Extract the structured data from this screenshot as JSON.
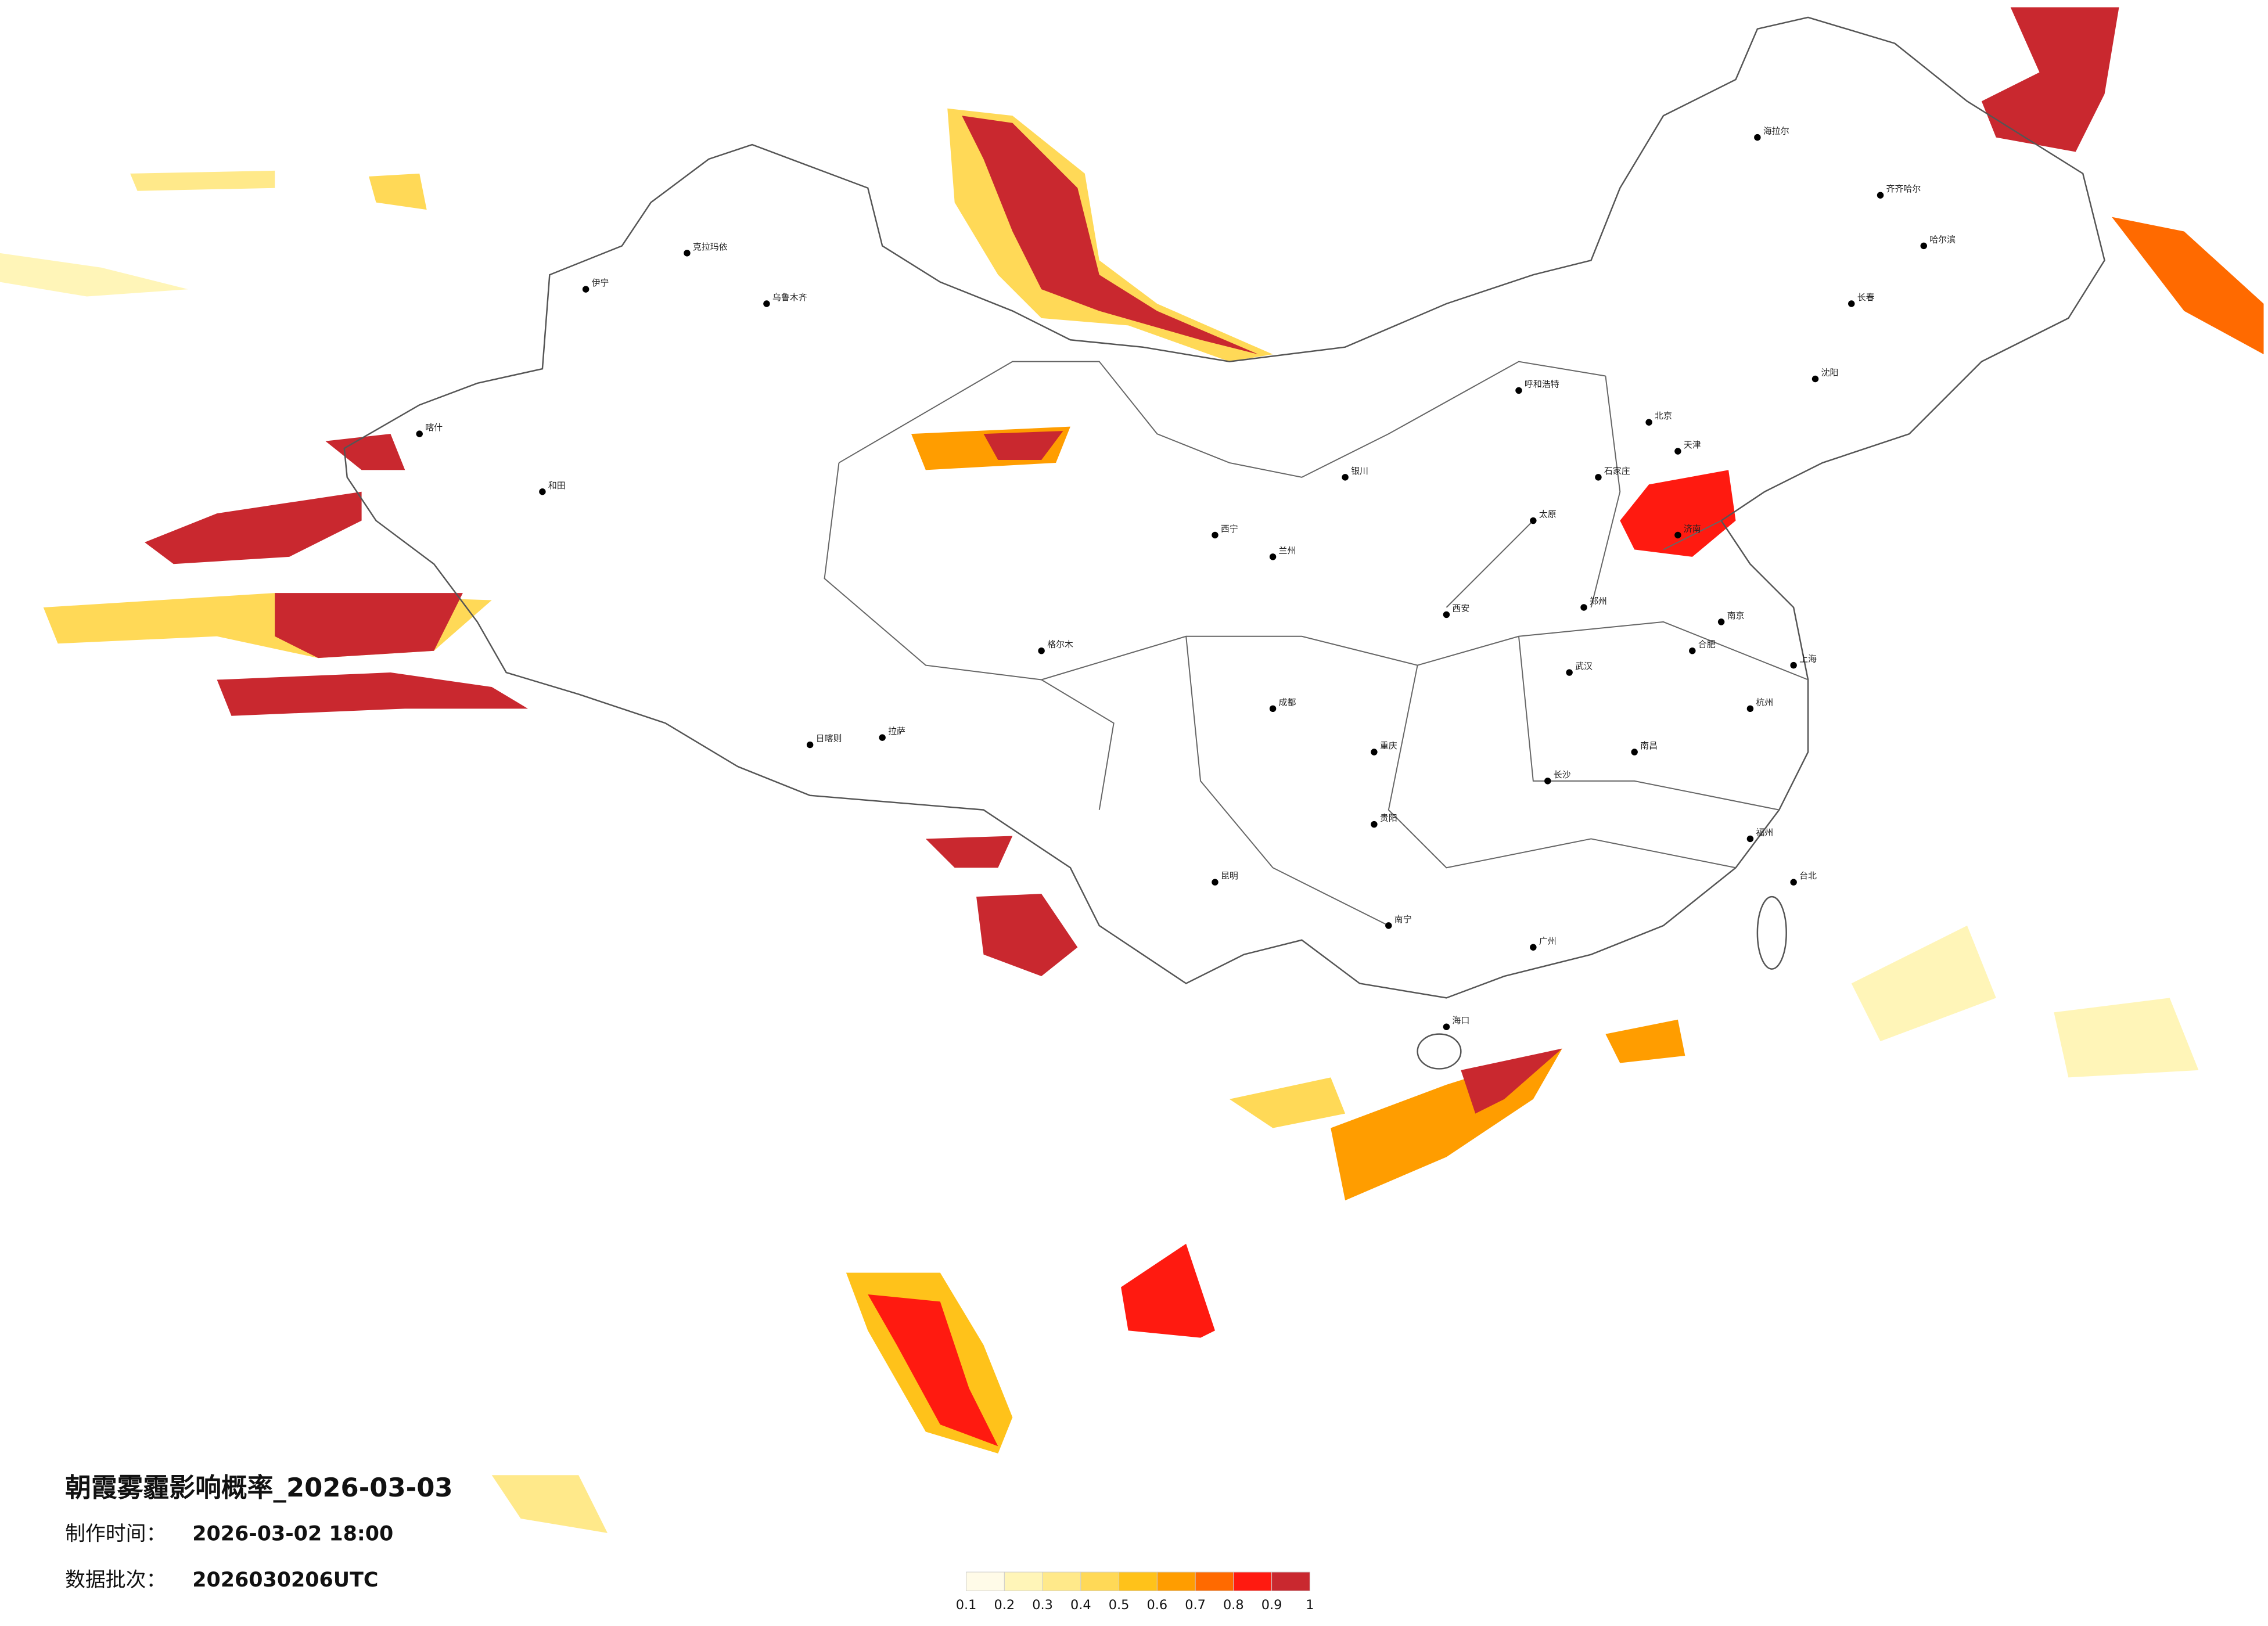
{
  "title": "朝霞雾霾影响概率_2026-03-03",
  "made_label": "制作时间：",
  "made_time": "2026-03-02 18:00",
  "batch_label": "数据批次：",
  "batch": "2026030206UTC",
  "legend": {
    "ticks": [
      0.1,
      0.2,
      0.3,
      0.4,
      0.5,
      0.6,
      0.7,
      0.8,
      0.9,
      1
    ],
    "colors": [
      "#fffbe8",
      "#fff5b8",
      "#ffe98a",
      "#ffd957",
      "#ffc21a",
      "#ff9d00",
      "#ff6a00",
      "#ff1a10",
      "#c9282f"
    ]
  },
  "cities": [
    "北京",
    "天津",
    "石家庄",
    "太原",
    "呼和浩特",
    "沈阳",
    "长春",
    "哈尔滨",
    "济南",
    "郑州",
    "西安",
    "兰州",
    "西宁",
    "银川",
    "乌鲁木齐",
    "拉萨",
    "成都",
    "重庆",
    "贵阳",
    "昆明",
    "南宁",
    "广州",
    "长沙",
    "武汉",
    "南昌",
    "合肥",
    "南京",
    "上海",
    "杭州",
    "福州",
    "台北",
    "海口",
    "和田",
    "喀什",
    "伊宁",
    "克拉玛依",
    "格尔木",
    "日喀则",
    "齐齐哈尔",
    "海拉尔"
  ]
}
